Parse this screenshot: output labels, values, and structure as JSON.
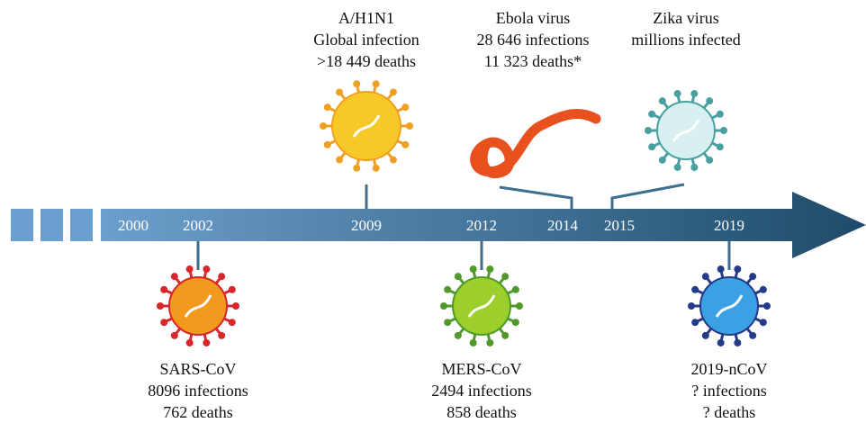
{
  "timeline": {
    "years": [
      "2000",
      "2002",
      "2009",
      "2012",
      "2014",
      "2015",
      "2019"
    ],
    "events_above": [
      {
        "lines": [
          "A/H1N1",
          "Global infection",
          ">18 449 deaths"
        ]
      },
      {
        "lines": [
          "Ebola virus",
          "28 646 infections",
          "11 323 deaths*"
        ]
      },
      {
        "lines": [
          "Zika virus",
          "millions infected"
        ]
      }
    ],
    "events_below": [
      {
        "lines": [
          "SARS-CoV",
          "8096 infections",
          "762 deaths"
        ]
      },
      {
        "lines": [
          "MERS-CoV",
          "2494 infections",
          "858 deaths"
        ]
      },
      {
        "lines": [
          "2019-nCoV",
          "? infections",
          "? deaths"
        ]
      }
    ]
  }
}
